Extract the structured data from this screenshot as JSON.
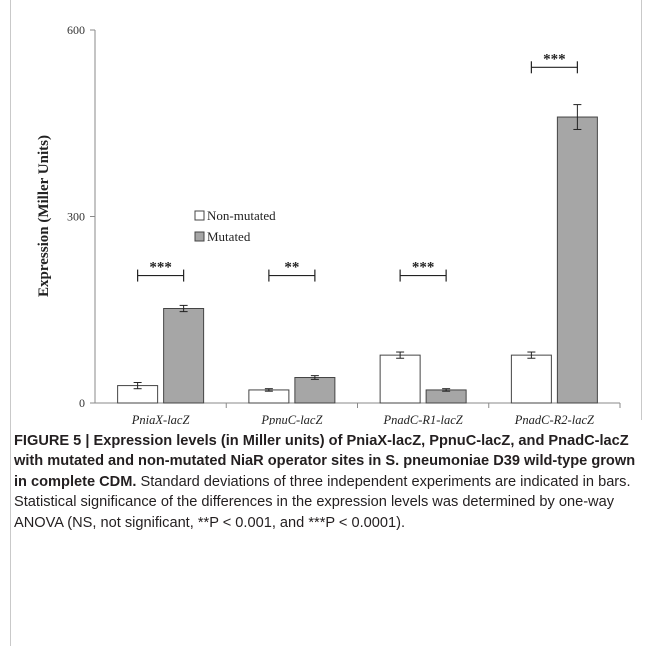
{
  "chart_data": {
    "type": "bar",
    "ylabel": "Expression (Miller Units)",
    "xlabel": "",
    "ylim": [
      0,
      600
    ],
    "yticks": [
      0,
      300,
      600
    ],
    "categories": [
      "PniaX-lacZ",
      "PpnuC-lacZ",
      "PnadC-R1-lacZ",
      "PnadC-R2-lacZ"
    ],
    "series": [
      {
        "name": "Non-mutated",
        "color": "#ffffff",
        "values": [
          28,
          21,
          77,
          77
        ],
        "errors": [
          5,
          2,
          5,
          5
        ]
      },
      {
        "name": "Mutated",
        "color": "#a6a6a6",
        "values": [
          152,
          41,
          21,
          460
        ],
        "errors": [
          5,
          3,
          2,
          20
        ]
      }
    ],
    "significance": [
      {
        "category": "PniaX-lacZ",
        "label": "***",
        "y": 205
      },
      {
        "category": "PpnuC-lacZ",
        "label": "**",
        "y": 205
      },
      {
        "category": "PnadC-R1-lacZ",
        "label": "***",
        "y": 205
      },
      {
        "category": "PnadC-R2-lacZ",
        "label": "***",
        "y": 540
      }
    ],
    "legend_position": "center-left",
    "grid": false
  },
  "caption": {
    "label": "FIGURE 5 | Expression levels (in Miller units) of PniaX-lacZ, PpnuC-lacZ, and PnadC-lacZ with mutated and non-mutated NiaR operator sites in S. pneumoniae D39 wild-type grown in complete CDM.",
    "text": "Standard deviations of three independent experiments are indicated in bars. Statistical significance of the differences in the expression levels was determined by one-way ANOVA (NS, not significant, **P < 0.001, and ***P < 0.0001)."
  }
}
